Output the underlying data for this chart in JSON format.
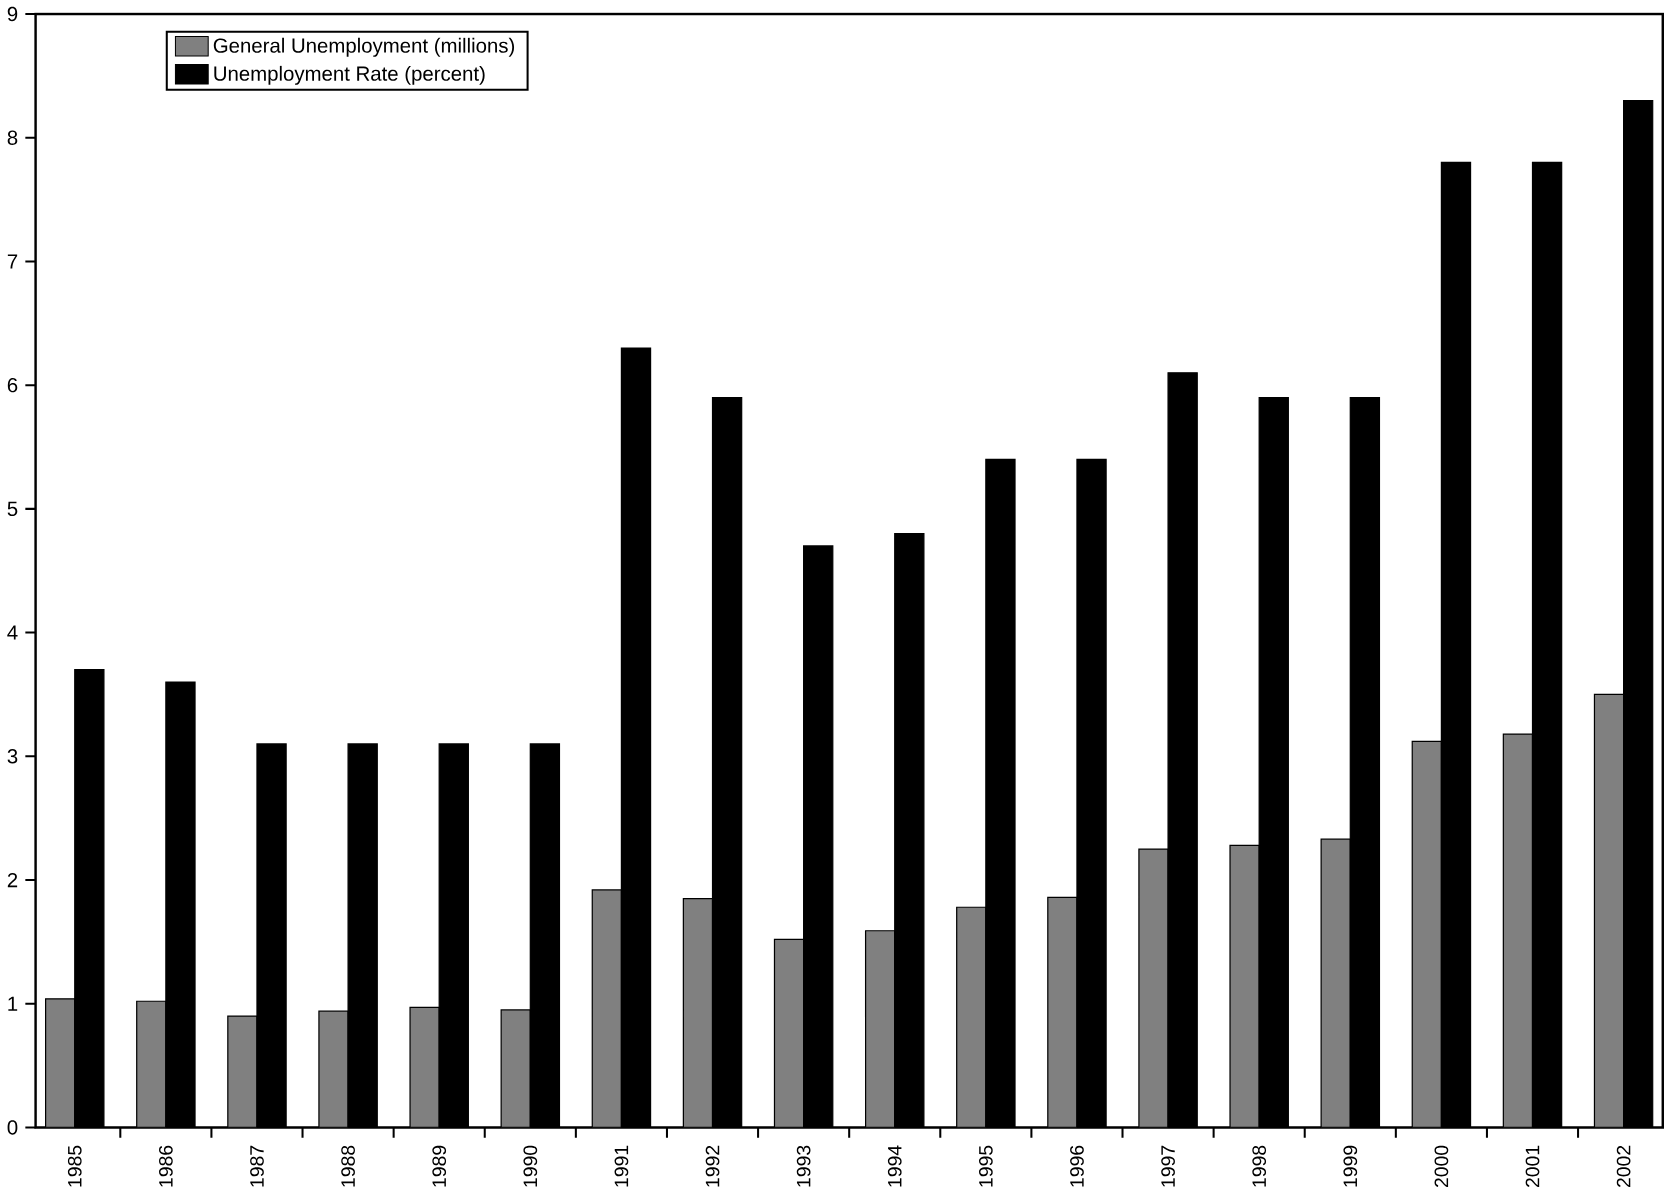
{
  "chart_data": {
    "type": "bar",
    "categories": [
      "1985",
      "1986",
      "1987",
      "1988",
      "1989",
      "1990",
      "1991",
      "1992",
      "1993",
      "1994",
      "1995",
      "1996",
      "1997",
      "1998",
      "1999",
      "2000",
      "2001",
      "2002"
    ],
    "series": [
      {
        "name": "General Unemployment (millions)",
        "color": "#808080",
        "values": [
          1.04,
          1.02,
          0.9,
          0.94,
          0.97,
          0.95,
          1.92,
          1.85,
          1.52,
          1.59,
          1.78,
          1.86,
          2.25,
          2.28,
          2.33,
          3.12,
          3.18,
          3.5
        ]
      },
      {
        "name": "Unemployment Rate (percent)",
        "color": "#000000",
        "values": [
          3.7,
          3.6,
          3.1,
          3.1,
          3.1,
          3.1,
          6.3,
          5.9,
          4.7,
          4.8,
          5.4,
          5.4,
          6.1,
          5.9,
          5.9,
          7.8,
          7.8,
          8.3
        ]
      }
    ],
    "ylim": [
      0,
      9
    ],
    "yticks": [
      0,
      1,
      2,
      3,
      4,
      5,
      6,
      7,
      8,
      9
    ],
    "legend": "top left",
    "grid": false
  }
}
